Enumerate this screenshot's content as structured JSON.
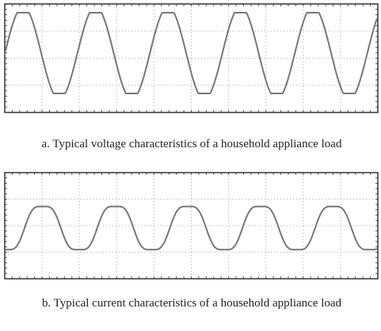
{
  "figure": {
    "panels": [
      {
        "caption": "a. Typical voltage characteristics of a household appliance load"
      },
      {
        "caption": "b. Typical current characteristics of a household appliance load"
      }
    ]
  }
}
